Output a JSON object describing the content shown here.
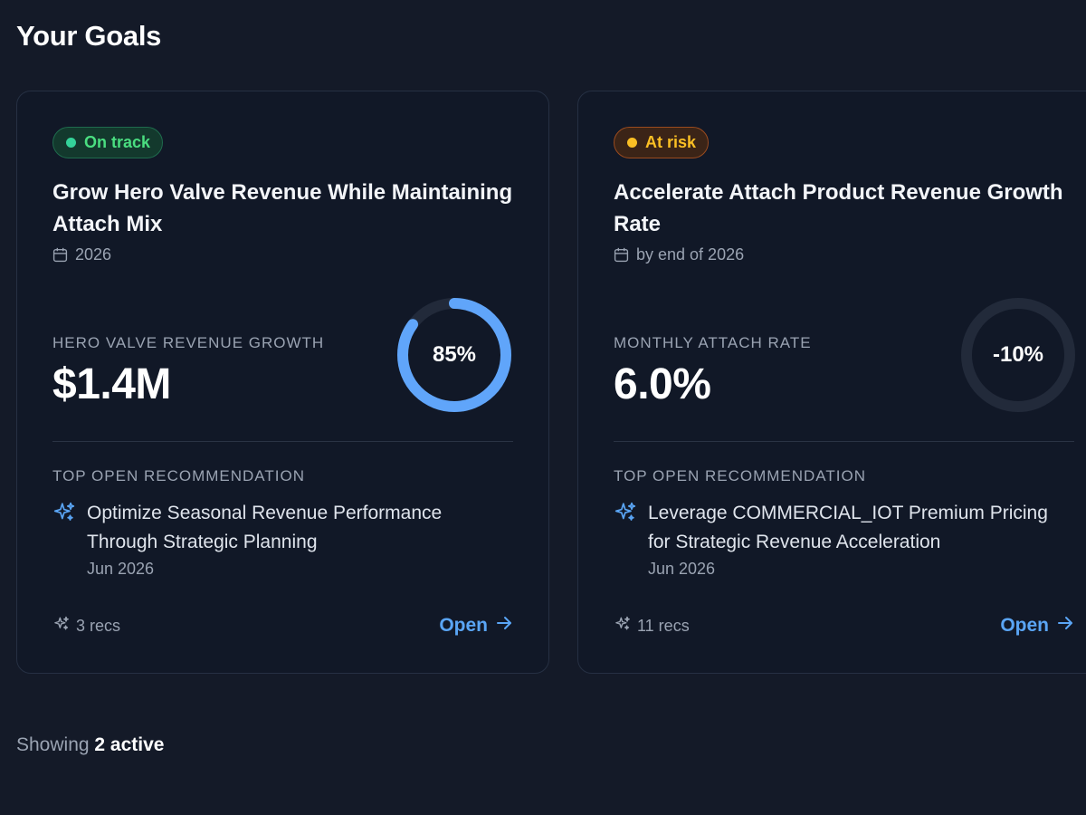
{
  "page": {
    "title": "Your Goals"
  },
  "goals": [
    {
      "status": "On track",
      "title": "Grow Hero Valve Revenue While Maintaining Attach Mix",
      "period": "2026",
      "metric_label": "HERO VALVE REVENUE GROWTH",
      "metric_value": "$1.4M",
      "progress_label": "85%",
      "progress": 0.85,
      "progress_color": "#60a5fa",
      "rec_heading": "TOP OPEN RECOMMENDATION",
      "rec_title": "Optimize Seasonal Revenue Performance Through Strategic Planning",
      "rec_date": "Jun 2026",
      "recs_count": "3 recs",
      "open_label": "Open"
    },
    {
      "status": "At risk",
      "title": "Accelerate Attach Product Revenue Growth Rate",
      "period": "by end of 2026",
      "metric_label": "MONTHLY ATTACH RATE",
      "metric_value": "6.0%",
      "progress_label": "-10%",
      "progress": 0,
      "progress_color": "#60a5fa",
      "rec_heading": "TOP OPEN RECOMMENDATION",
      "rec_title": "Leverage COMMERCIAL_IOT Premium Pricing for Strategic Revenue Acceleration",
      "rec_date": "Jun 2026",
      "recs_count": "11 recs",
      "open_label": "Open"
    }
  ],
  "footer": {
    "showing_prefix": "Showing",
    "showing_count": "2 active"
  },
  "colors": {
    "background": "#141a28",
    "card": "#111827",
    "accent": "#5aa5f5",
    "on_track": "#4ade80",
    "at_risk": "#fbbf24"
  }
}
